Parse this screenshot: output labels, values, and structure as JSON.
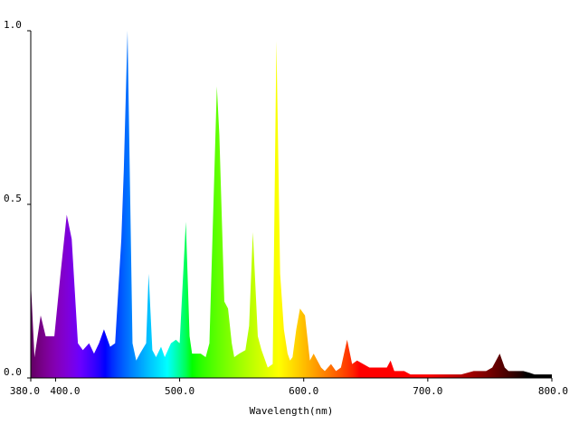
{
  "chart_data": {
    "type": "area",
    "title": "",
    "xlabel": "Wavelength(nm)",
    "ylabel": "",
    "xlim": [
      380,
      800
    ],
    "ylim": [
      0,
      1.0
    ],
    "grid": false,
    "fill": "wavelength-spectrum-colors",
    "x_ticks": [
      {
        "value": 380,
        "label": "380.0"
      },
      {
        "value": 400,
        "label": "400.0"
      },
      {
        "value": 500,
        "label": "500.0"
      },
      {
        "value": 600,
        "label": "600.0"
      },
      {
        "value": 700,
        "label": "700.0"
      },
      {
        "value": 800,
        "label": "800.0"
      }
    ],
    "y_ticks": [
      {
        "value": 0.0,
        "label": "0.0"
      },
      {
        "value": 0.5,
        "label": "0.5"
      },
      {
        "value": 1.0,
        "label": "1.0"
      }
    ],
    "series": [
      {
        "x": [
          380,
          383,
          388,
          392,
          396,
          399,
          404,
          409,
          413,
          418,
          422,
          427,
          431,
          435,
          439,
          444,
          448,
          453,
          455,
          458,
          462,
          465,
          468,
          473,
          475,
          478,
          481,
          485,
          488,
          493,
          497,
          500,
          505,
          508,
          510,
          513,
          517,
          521,
          524,
          530,
          532,
          536,
          539,
          542,
          544,
          548,
          553,
          556,
          559,
          563,
          566,
          569,
          571,
          575,
          578,
          581,
          584,
          587,
          589,
          591,
          594,
          597,
          601,
          605,
          608,
          614,
          617,
          622,
          626,
          630,
          635,
          639,
          643,
          648,
          653,
          658,
          662,
          667,
          670,
          673,
          677,
          681,
          686,
          690,
          697,
          707,
          717,
          727,
          737,
          747,
          752,
          758,
          762,
          765,
          769,
          773,
          777,
          782,
          786,
          791,
          795,
          800
        ],
        "y": [
          0.28,
          0.06,
          0.18,
          0.12,
          0.12,
          0.12,
          0.3,
          0.47,
          0.4,
          0.1,
          0.08,
          0.1,
          0.07,
          0.1,
          0.14,
          0.09,
          0.1,
          0.4,
          0.6,
          1.0,
          0.1,
          0.05,
          0.07,
          0.1,
          0.3,
          0.08,
          0.06,
          0.09,
          0.06,
          0.1,
          0.11,
          0.1,
          0.45,
          0.12,
          0.07,
          0.07,
          0.07,
          0.06,
          0.1,
          0.84,
          0.7,
          0.22,
          0.2,
          0.1,
          0.06,
          0.07,
          0.08,
          0.15,
          0.42,
          0.12,
          0.08,
          0.05,
          0.03,
          0.04,
          0.97,
          0.3,
          0.14,
          0.07,
          0.05,
          0.06,
          0.14,
          0.2,
          0.18,
          0.05,
          0.07,
          0.03,
          0.02,
          0.04,
          0.02,
          0.03,
          0.11,
          0.04,
          0.05,
          0.04,
          0.03,
          0.03,
          0.03,
          0.03,
          0.05,
          0.02,
          0.02,
          0.02,
          0.01,
          0.01,
          0.01,
          0.01,
          0.01,
          0.01,
          0.02,
          0.02,
          0.03,
          0.07,
          0.03,
          0.02,
          0.02,
          0.02,
          0.02,
          0.015,
          0.01,
          0.01,
          0.01,
          0.01
        ]
      }
    ]
  }
}
